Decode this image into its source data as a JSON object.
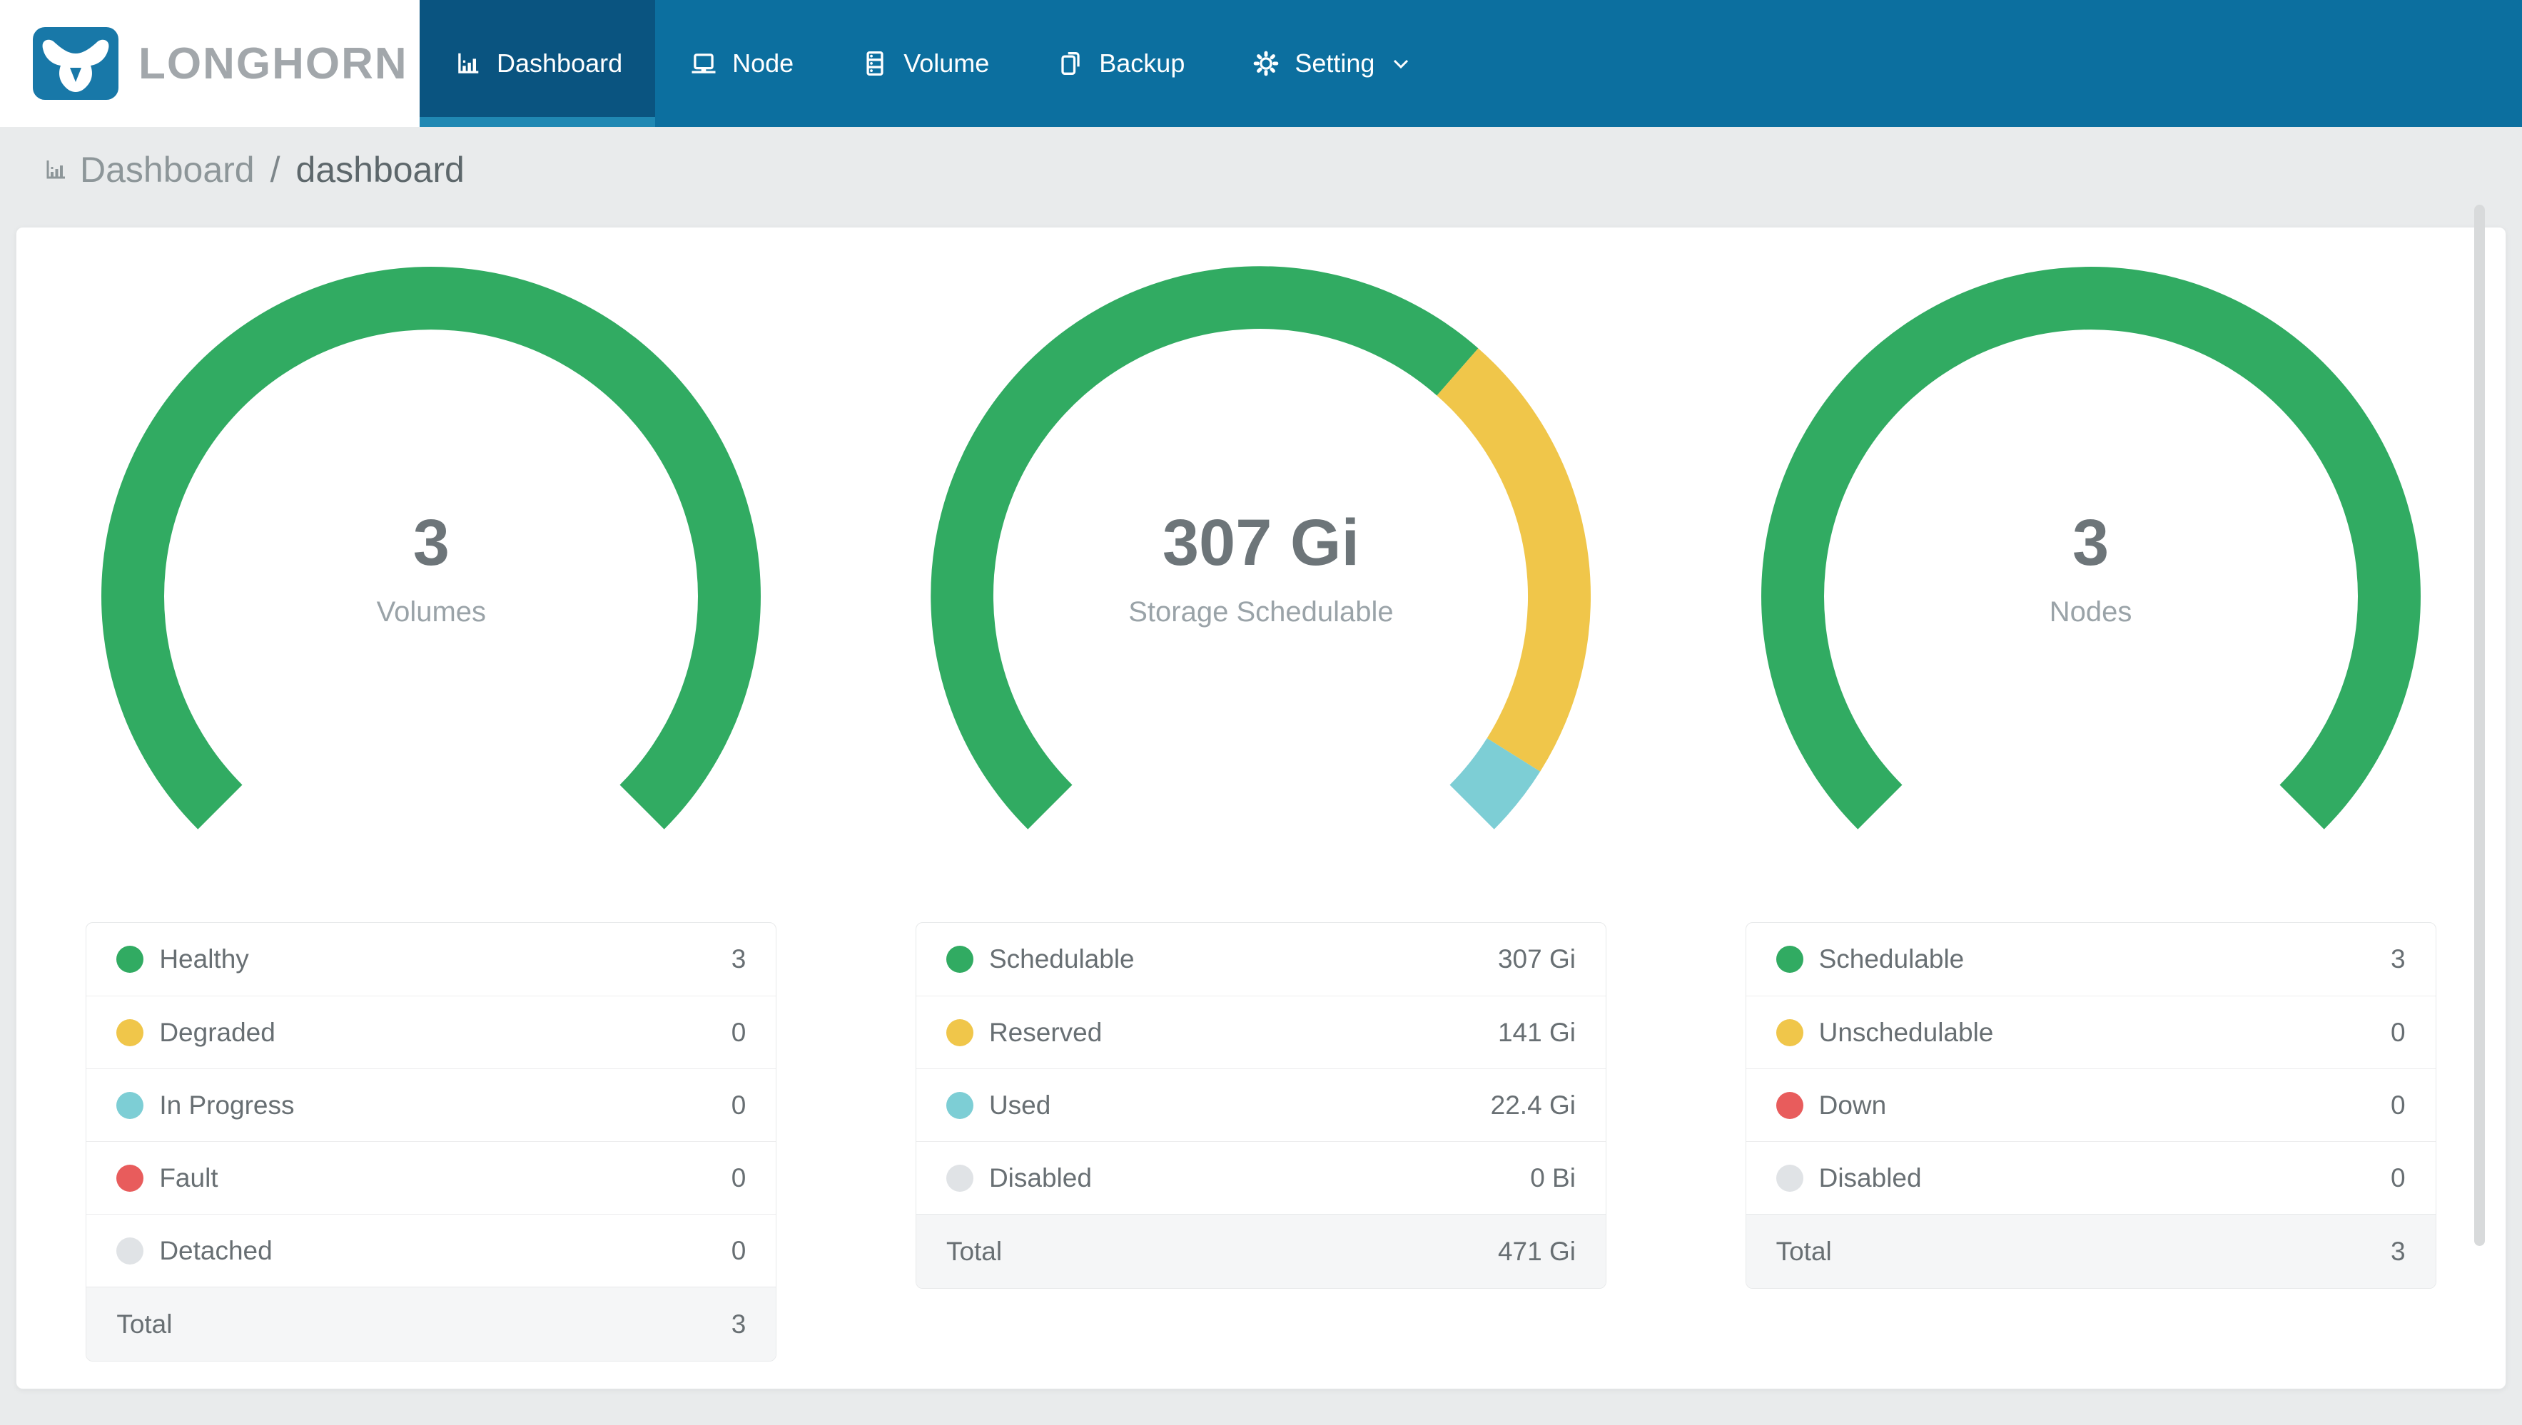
{
  "brand": {
    "name": "LONGHORN"
  },
  "nav": {
    "items": [
      {
        "label": "Dashboard",
        "icon": "bar-chart-icon",
        "active": true
      },
      {
        "label": "Node",
        "icon": "laptop-icon",
        "active": false
      },
      {
        "label": "Volume",
        "icon": "server-icon",
        "active": false
      },
      {
        "label": "Backup",
        "icon": "copy-file-icon",
        "active": false
      },
      {
        "label": "Setting",
        "icon": "gear-icon",
        "active": false,
        "has_dropdown": true
      }
    ]
  },
  "breadcrumb": {
    "section": "Dashboard",
    "separator": "/",
    "page": "dashboard"
  },
  "colors": {
    "nav_bg": "#0c6f9f",
    "nav_active_bg": "#0a5480",
    "nav_active_indicator": "#2088b3",
    "logo_blue": "#1878a8",
    "page_bg": "#e9ebec",
    "number_text": "#6d7579",
    "label_text": "#9aa3a8",
    "legend_text": "#686f73",
    "palette": {
      "green": "#31ab62",
      "yellow": "#f0c64a",
      "teal": "#7dced5",
      "red": "#e85c5c",
      "gray": "#e0e3e6"
    }
  },
  "chart_data": [
    {
      "type": "gauge-donut",
      "name": "volumes",
      "start_angle": 225,
      "sweep": 270,
      "center": {
        "value": "3",
        "label": "Volumes"
      },
      "segments": [
        {
          "label": "Healthy",
          "value": 3,
          "display": "3",
          "color": "green"
        },
        {
          "label": "Degraded",
          "value": 0,
          "display": "0",
          "color": "yellow"
        },
        {
          "label": "In Progress",
          "value": 0,
          "display": "0",
          "color": "teal"
        },
        {
          "label": "Fault",
          "value": 0,
          "display": "0",
          "color": "red"
        },
        {
          "label": "Detached",
          "value": 0,
          "display": "0",
          "color": "gray"
        }
      ],
      "total": {
        "label": "Total",
        "value": 3,
        "display": "3"
      }
    },
    {
      "type": "gauge-donut",
      "name": "storage",
      "start_angle": 225,
      "sweep": 270,
      "center": {
        "value": "307 Gi",
        "label": "Storage Schedulable"
      },
      "segments": [
        {
          "label": "Schedulable",
          "value": 307,
          "display": "307 Gi",
          "color": "green"
        },
        {
          "label": "Reserved",
          "value": 141,
          "display": "141 Gi",
          "color": "yellow"
        },
        {
          "label": "Used",
          "value": 22.4,
          "display": "22.4 Gi",
          "color": "teal"
        },
        {
          "label": "Disabled",
          "value": 0,
          "display": "0 Bi",
          "color": "gray"
        }
      ],
      "total": {
        "label": "Total",
        "value": 471,
        "display": "471 Gi"
      }
    },
    {
      "type": "gauge-donut",
      "name": "nodes",
      "start_angle": 225,
      "sweep": 270,
      "center": {
        "value": "3",
        "label": "Nodes"
      },
      "segments": [
        {
          "label": "Schedulable",
          "value": 3,
          "display": "3",
          "color": "green"
        },
        {
          "label": "Unschedulable",
          "value": 0,
          "display": "0",
          "color": "yellow"
        },
        {
          "label": "Down",
          "value": 0,
          "display": "0",
          "color": "red"
        },
        {
          "label": "Disabled",
          "value": 0,
          "display": "0",
          "color": "gray"
        }
      ],
      "total": {
        "label": "Total",
        "value": 3,
        "display": "3"
      }
    }
  ]
}
